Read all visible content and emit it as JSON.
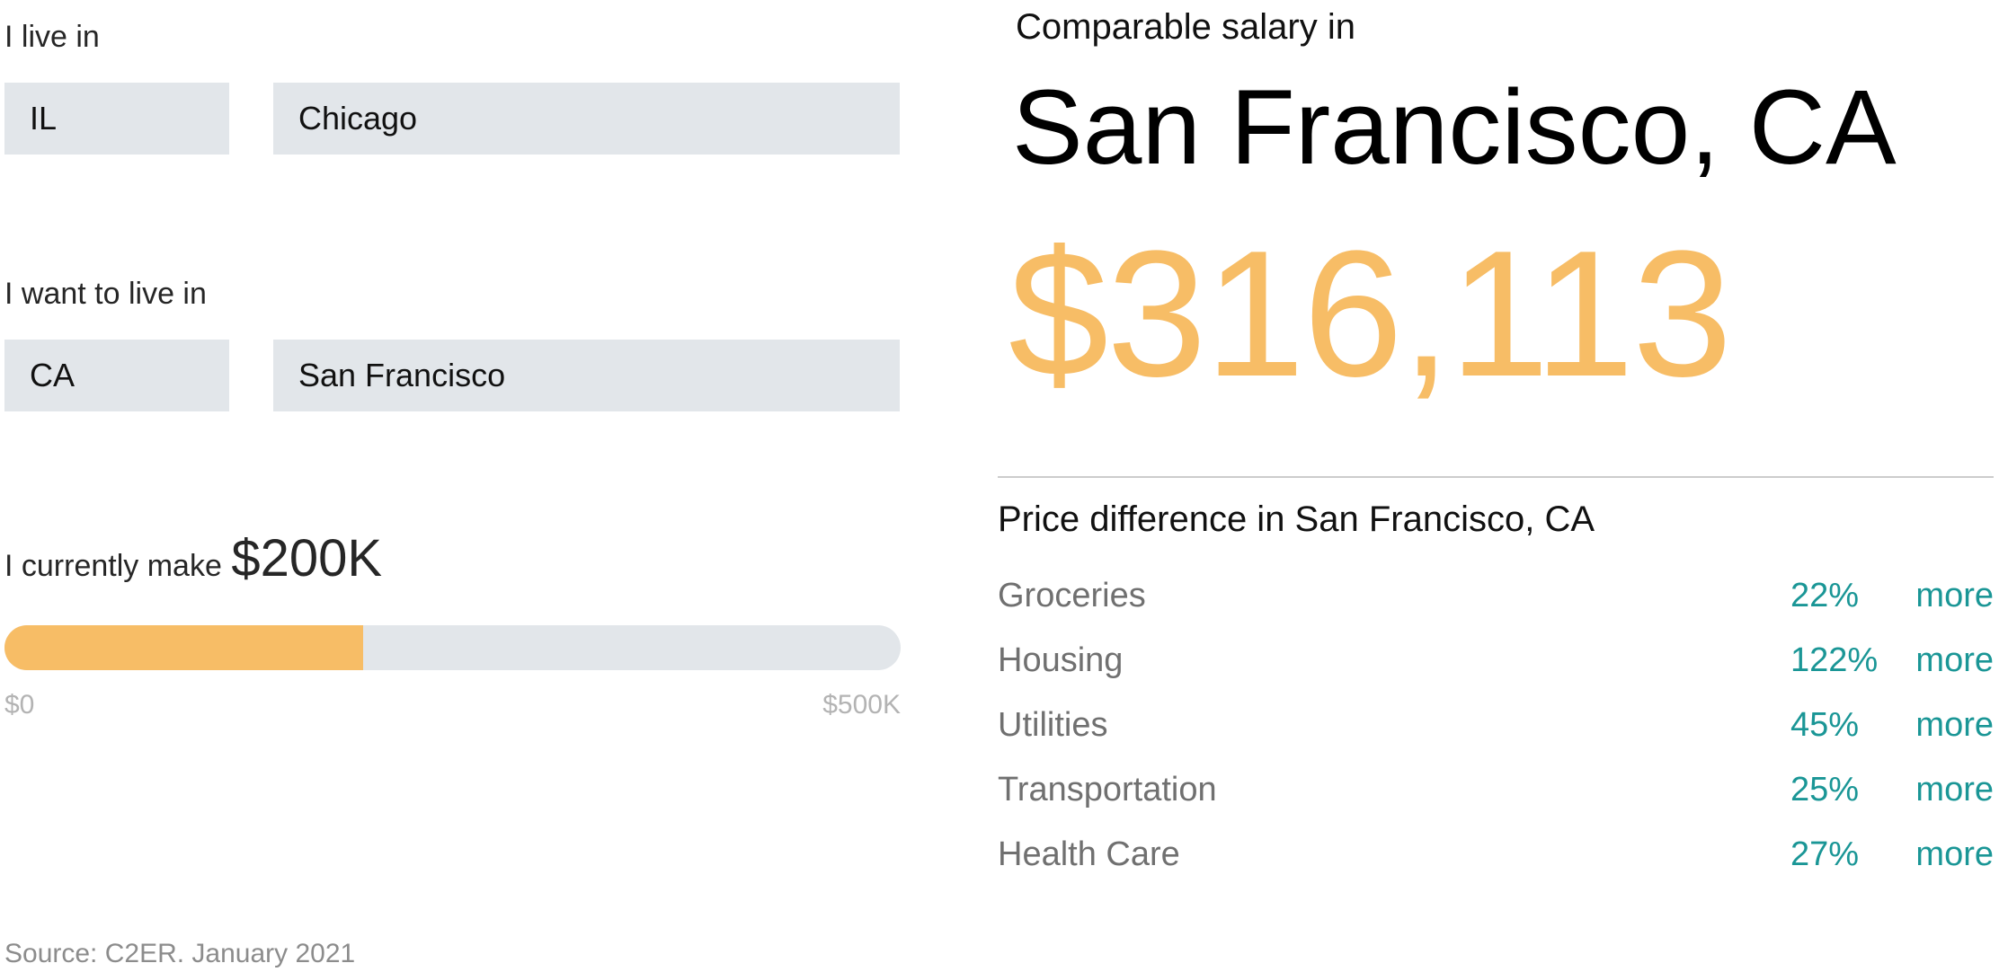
{
  "inputs": {
    "live_label": "I live in",
    "live_state": "IL",
    "live_city": "Chicago",
    "want_label": "I want to live in",
    "want_state": "CA",
    "want_city": "San Francisco"
  },
  "income": {
    "label": "I currently make",
    "value": "$200K",
    "fraction": 0.4,
    "min_label": "$0",
    "max_label": "$500K"
  },
  "result": {
    "label": "Comparable salary in",
    "city": "San Francisco, CA",
    "salary": "$316,113"
  },
  "differences": {
    "title": "Price difference in San Francisco, CA",
    "rows": [
      {
        "category": "Groceries",
        "percent": "22%",
        "direction": "more"
      },
      {
        "category": "Housing",
        "percent": "122%",
        "direction": "more"
      },
      {
        "category": "Utilities",
        "percent": "45%",
        "direction": "more"
      },
      {
        "category": "Transportation",
        "percent": "25%",
        "direction": "more"
      },
      {
        "category": "Health Care",
        "percent": "27%",
        "direction": "more"
      }
    ]
  },
  "source": "Source: C2ER. January 2021",
  "colors": {
    "accent": "#f7bd66",
    "teal": "#1a9696",
    "field_bg": "#e2e6ea"
  }
}
